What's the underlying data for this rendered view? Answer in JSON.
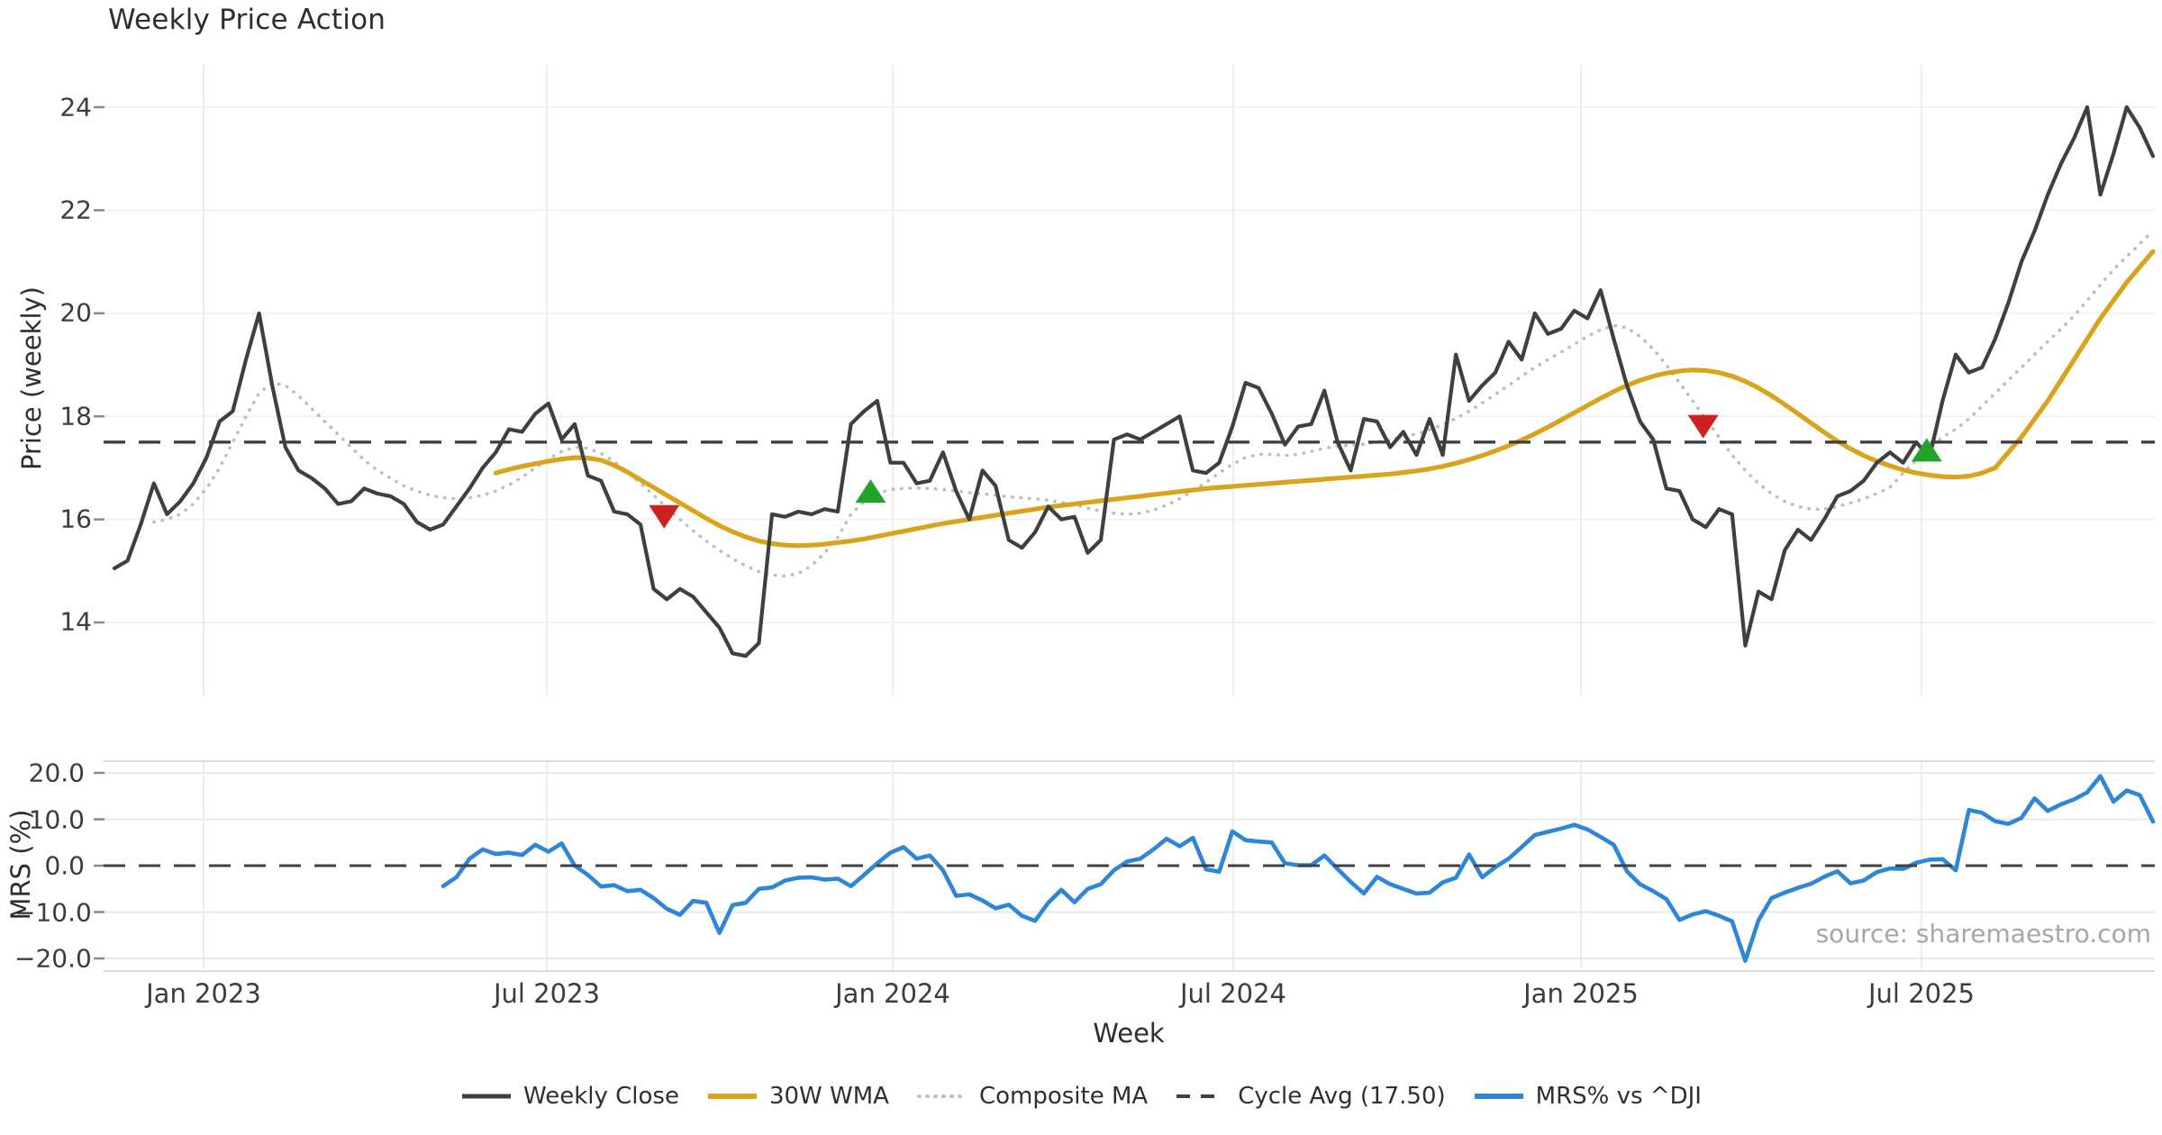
{
  "title": "Weekly Price Action",
  "source_note": "source: sharemaestro.com",
  "axes": {
    "x": {
      "title": "Week",
      "tick_labels": [
        "Jan 2023",
        "Jul 2023",
        "Jan 2024",
        "Jul 2024",
        "Jan 2025",
        "Jul 2025"
      ]
    },
    "y_price": {
      "title": "Price (weekly)",
      "tick_labels": [
        "24",
        "22",
        "20",
        "18",
        "16",
        "14"
      ]
    },
    "y_mrs": {
      "title": "MRS (%)",
      "tick_labels": [
        "20.0",
        "10.0",
        "0.0",
        "−10.0",
        "−20.0"
      ]
    }
  },
  "legend": [
    {
      "label": "Weekly Close",
      "color": "#3f3f3f",
      "style": "solid"
    },
    {
      "label": "30W WMA",
      "color": "#d9a31c",
      "style": "solid"
    },
    {
      "label": "Composite MA",
      "color": "#bfbfbf",
      "style": "dotted"
    },
    {
      "label": "Cycle Avg (17.50)",
      "color": "#404040",
      "style": "dashed"
    },
    {
      "label": "MRS% vs ^DJI",
      "color": "#2e86d9",
      "style": "solid"
    }
  ],
  "colors": {
    "weekly_close": "#3f3f3f",
    "wma": "#d9a31c",
    "composite": "#bfbfbf",
    "cycle_avg": "#404040",
    "mrs": "#2e86d9",
    "buy_marker": "#22a32a",
    "sell_marker": "#cd2020",
    "grid_major": "#ededed",
    "grid_minor": "#f2f2f2",
    "panel_border": "#dcdcdc",
    "tick_mark": "#8a8a8a"
  },
  "chart_data": {
    "type": "line",
    "title": "Weekly Price Action",
    "x_unit": "week",
    "x_start": "2022-11-14",
    "weeks_total": 156,
    "x_tick_labels": [
      "Jan 2023",
      "Jul 2023",
      "Jan 2024",
      "Jul 2024",
      "Jan 2025",
      "Jul 2025"
    ],
    "x_tick_weeks": [
      6.78,
      32.88,
      59.18,
      85.07,
      111.51,
      137.4
    ],
    "panels": [
      {
        "name": "price",
        "ylabel": "Price (weekly)",
        "ylim": [
          12.6,
          24.8
        ],
        "yticks": [
          14,
          16,
          18,
          20,
          22,
          24
        ],
        "grid": true,
        "series": [
          {
            "name": "Weekly Close",
            "style": "solid",
            "width": 4.2,
            "color": "#3f3f3f",
            "start_week": 0,
            "values": [
              15.05,
              15.2,
              15.9,
              16.7,
              16.1,
              16.35,
              16.7,
              17.2,
              17.9,
              18.1,
              19.1,
              20.0,
              18.6,
              17.4,
              16.95,
              16.8,
              16.6,
              16.3,
              16.35,
              16.6,
              16.5,
              16.45,
              16.3,
              15.95,
              15.8,
              15.9,
              16.25,
              16.6,
              17.0,
              17.3,
              17.75,
              17.7,
              18.05,
              18.25,
              17.55,
              17.85,
              16.85,
              16.75,
              16.15,
              16.1,
              15.9,
              14.65,
              14.45,
              14.65,
              14.5,
              14.2,
              13.9,
              13.4,
              13.35,
              13.6,
              16.1,
              16.05,
              16.15,
              16.1,
              16.2,
              16.15,
              17.85,
              18.1,
              18.3,
              17.1,
              17.1,
              16.7,
              16.75,
              17.3,
              16.55,
              16.0,
              16.95,
              16.65,
              15.6,
              15.45,
              15.75,
              16.25,
              16.0,
              16.05,
              15.35,
              15.6,
              17.55,
              17.65,
              17.55,
              17.7,
              17.85,
              18.0,
              16.95,
              16.9,
              17.1,
              17.8,
              18.65,
              18.55,
              18.05,
              17.45,
              17.8,
              17.85,
              18.5,
              17.5,
              16.95,
              17.95,
              17.9,
              17.4,
              17.7,
              17.25,
              17.95,
              17.25,
              19.2,
              18.3,
              18.6,
              18.85,
              19.45,
              19.1,
              20.0,
              19.6,
              19.7,
              20.05,
              19.9,
              20.45,
              19.5,
              18.6,
              17.9,
              17.55,
              16.6,
              16.55,
              16.0,
              15.85,
              16.2,
              16.1,
              13.55,
              14.6,
              14.45,
              15.4,
              15.8,
              15.6,
              16.0,
              16.45,
              16.55,
              16.75,
              17.1,
              17.3,
              17.1,
              17.5,
              17.2,
              18.3,
              19.2,
              18.85,
              18.95,
              19.5,
              20.2,
              21.0,
              21.6,
              22.3,
              22.9,
              23.4,
              24.0,
              22.3,
              23.1,
              24.0,
              23.6,
              23.05
            ]
          },
          {
            "name": "30W WMA",
            "style": "solid",
            "width": 5.2,
            "color": "#d9a31c",
            "start_week": 29,
            "values": [
              16.9,
              16.97,
              17.03,
              17.08,
              17.13,
              17.17,
              17.2,
              17.19,
              17.15,
              17.05,
              16.92,
              16.77,
              16.62,
              16.47,
              16.32,
              16.17,
              16.02,
              15.88,
              15.76,
              15.66,
              15.58,
              15.53,
              15.5,
              15.49,
              15.5,
              15.52,
              15.55,
              15.58,
              15.62,
              15.67,
              15.72,
              15.77,
              15.82,
              15.87,
              15.92,
              15.96,
              16.0,
              16.04,
              16.08,
              16.12,
              16.16,
              16.2,
              16.24,
              16.27,
              16.3,
              16.33,
              16.36,
              16.39,
              16.42,
              16.45,
              16.48,
              16.51,
              16.54,
              16.57,
              16.6,
              16.62,
              16.64,
              16.66,
              16.68,
              16.7,
              16.72,
              16.74,
              16.76,
              16.78,
              16.8,
              16.82,
              16.84,
              16.86,
              16.88,
              16.91,
              16.94,
              16.98,
              17.03,
              17.09,
              17.16,
              17.24,
              17.33,
              17.43,
              17.54,
              17.66,
              17.79,
              17.93,
              18.07,
              18.21,
              18.35,
              18.48,
              18.6,
              18.7,
              18.78,
              18.84,
              18.88,
              18.9,
              18.89,
              18.85,
              18.78,
              18.68,
              18.55,
              18.4,
              18.23,
              18.05,
              17.87,
              17.69,
              17.52,
              17.37,
              17.24,
              17.13,
              17.04,
              16.96,
              16.9,
              16.86,
              16.83,
              16.82,
              16.84,
              16.9,
              17.0,
              17.3,
              17.6,
              17.95,
              18.3,
              18.7,
              19.1,
              19.5,
              19.9,
              20.25,
              20.6,
              20.9,
              21.2
            ]
          },
          {
            "name": "Composite MA",
            "style": "dotted",
            "width": 3.6,
            "color": "#bfbfbf",
            "start_week": 3,
            "values": [
              15.95,
              16.0,
              16.1,
              16.3,
              16.6,
              17.0,
              17.5,
              18.0,
              18.45,
              18.65,
              18.6,
              18.4,
              18.15,
              17.9,
              17.65,
              17.4,
              17.15,
              16.95,
              16.8,
              16.65,
              16.55,
              16.47,
              16.42,
              16.4,
              16.42,
              16.47,
              16.55,
              16.67,
              16.82,
              17.0,
              17.17,
              17.32,
              17.4,
              17.38,
              17.28,
              17.12,
              16.92,
              16.7,
              16.47,
              16.23,
              16.0,
              15.78,
              15.58,
              15.4,
              15.24,
              15.1,
              14.99,
              14.92,
              14.9,
              14.95,
              15.1,
              15.35,
              15.65,
              16.1,
              16.35,
              16.5,
              16.58,
              16.6,
              16.61,
              16.6,
              16.58,
              16.55,
              16.52,
              16.5,
              16.47,
              16.44,
              16.42,
              16.4,
              16.37,
              16.33,
              16.28,
              16.22,
              16.16,
              16.12,
              16.1,
              16.12,
              16.18,
              16.28,
              16.4,
              16.55,
              16.72,
              16.9,
              17.07,
              17.2,
              17.26,
              17.26,
              17.24,
              17.26,
              17.32,
              17.38,
              17.42,
              17.44,
              17.46,
              17.5,
              17.55,
              17.6,
              17.66,
              17.74,
              17.84,
              17.96,
              18.1,
              18.26,
              18.43,
              18.6,
              18.78,
              18.95,
              19.1,
              19.25,
              19.4,
              19.55,
              19.68,
              19.76,
              19.72,
              19.55,
              19.3,
              19.0,
              18.65,
              18.3,
              17.95,
              17.6,
              17.25,
              16.95,
              16.7,
              16.5,
              16.35,
              16.25,
              16.2,
              16.2,
              16.25,
              16.32,
              16.4,
              16.5,
              16.62,
              16.9,
              17.15,
              17.4,
              17.6,
              17.75,
              17.95,
              18.2,
              18.45,
              18.7,
              18.95,
              19.2,
              19.45,
              19.7,
              19.95,
              20.25,
              20.55,
              20.85,
              21.1,
              21.35,
              21.6
            ]
          },
          {
            "name": "Cycle Avg (17.50)",
            "style": "dashed",
            "width": 3.4,
            "color": "#404040",
            "const_value": 17.5
          }
        ],
        "markers": {
          "sell": {
            "color": "#cd2020",
            "shape": "triangle-down",
            "points": [
              {
                "week": 41.8,
                "value": 16.05
              },
              {
                "week": 120.8,
                "value": 17.8
              }
            ]
          },
          "buy": {
            "color": "#22a32a",
            "shape": "triangle-up",
            "points": [
              {
                "week": 57.5,
                "value": 16.55
              },
              {
                "week": 137.8,
                "value": 17.35
              }
            ]
          }
        }
      },
      {
        "name": "mrs",
        "ylabel": "MRS (%)",
        "ylim": [
          -22.7,
          22.5
        ],
        "yticks": [
          -20,
          -10,
          0,
          10,
          20
        ],
        "grid": true,
        "series": [
          {
            "name": "MRS% vs ^DJI",
            "style": "solid",
            "width": 4.6,
            "color": "#2e86d9",
            "start_week": 25,
            "values": [
              -4.4,
              -2.5,
              1.5,
              3.5,
              2.5,
              2.8,
              2.3,
              4.5,
              3.0,
              4.8,
              0.0,
              -2.0,
              -4.5,
              -4.2,
              -5.5,
              -5.2,
              -7.0,
              -9.3,
              -10.6,
              -7.6,
              -8.0,
              -14.5,
              -8.5,
              -8.0,
              -5.0,
              -4.7,
              -3.2,
              -2.6,
              -2.5,
              -3.0,
              -2.8,
              -4.4,
              -2.0,
              0.5,
              2.8,
              4.0,
              1.5,
              2.2,
              -1.0,
              -6.5,
              -6.2,
              -7.5,
              -9.2,
              -8.4,
              -10.8,
              -11.9,
              -8.0,
              -5.2,
              -7.9,
              -5.0,
              -4.0,
              -1.0,
              0.9,
              1.5,
              3.5,
              5.8,
              4.2,
              6.0,
              -0.8,
              -1.3,
              7.4,
              5.5,
              5.2,
              5.0,
              0.5,
              0.1,
              0.1,
              2.2,
              -0.7,
              -3.5,
              -6.0,
              -2.4,
              -4.0,
              -5.0,
              -6.0,
              -5.8,
              -3.6,
              -2.6,
              2.4,
              -2.5,
              -0.3,
              1.5,
              4.0,
              6.6,
              7.3,
              8.0,
              8.8,
              7.8,
              6.2,
              4.5,
              -1.2,
              -4.0,
              -5.5,
              -7.2,
              -11.7,
              -10.5,
              -9.8,
              -10.8,
              -12.0,
              -20.5,
              -11.8,
              -7.0,
              -5.8,
              -4.8,
              -3.9,
              -2.4,
              -1.2,
              -3.8,
              -3.2,
              -1.4,
              -0.6,
              -0.7,
              0.6,
              1.3,
              1.4,
              -1.0,
              12.0,
              11.4,
              9.6,
              9.0,
              10.3,
              14.5,
              11.8,
              13.2,
              14.3,
              15.8,
              19.3,
              13.8,
              16.2,
              15.2,
              9.5
            ]
          },
          {
            "name": "Zero line",
            "style": "dashed",
            "width": 3.0,
            "color": "#404040",
            "const_value": 0
          }
        ]
      }
    ]
  }
}
